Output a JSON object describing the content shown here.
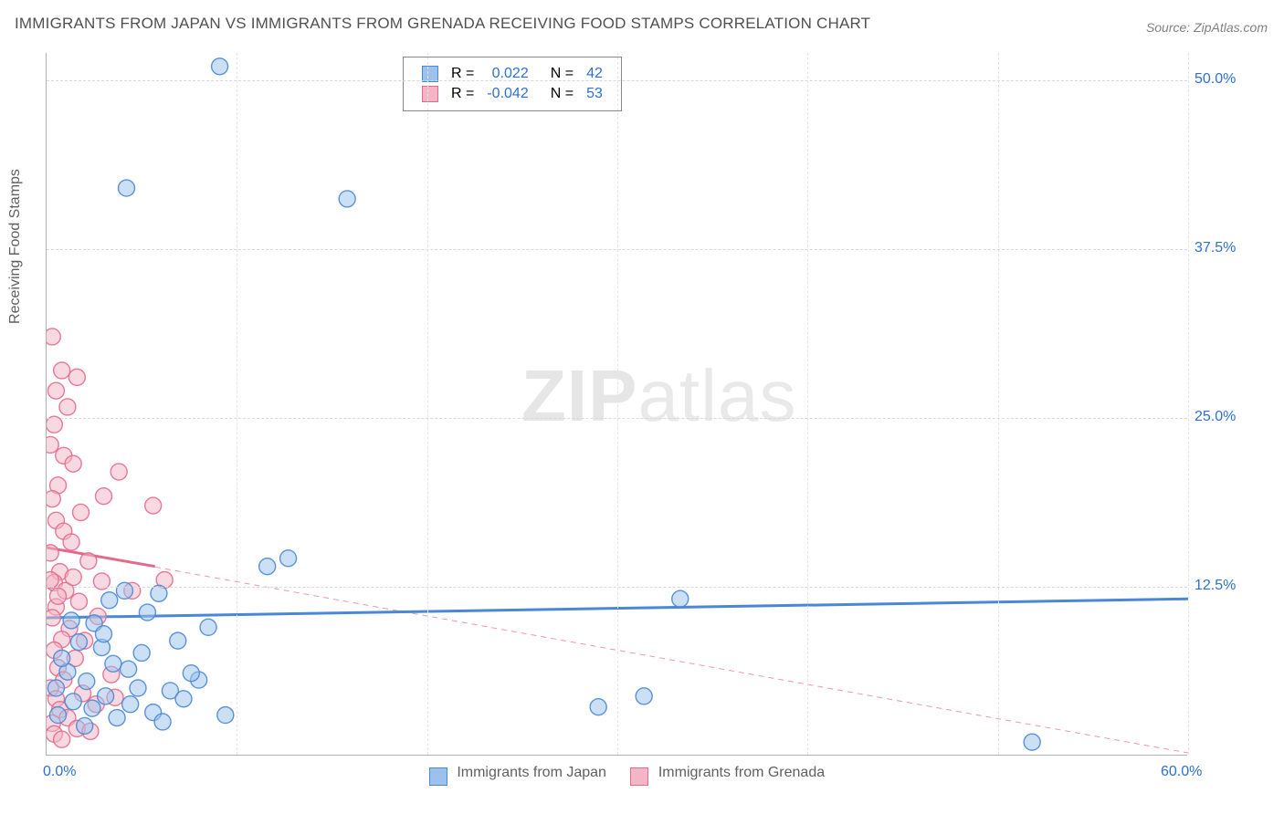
{
  "title": "IMMIGRANTS FROM JAPAN VS IMMIGRANTS FROM GRENADA RECEIVING FOOD STAMPS CORRELATION CHART",
  "source": "Source: ZipAtlas.com",
  "ylabel": "Receiving Food Stamps",
  "watermark": {
    "bold": "ZIP",
    "light": "atlas"
  },
  "chart": {
    "type": "scatter",
    "xlim": [
      0,
      60
    ],
    "ylim": [
      0,
      52
    ],
    "xticks": [
      0,
      10,
      20,
      30,
      40,
      50,
      60
    ],
    "xtick_labels": [
      "0.0%",
      "",
      "",
      "",
      "",
      "",
      "60.0%"
    ],
    "yticks": [
      12.5,
      25.0,
      37.5,
      50.0
    ],
    "ytick_labels": [
      "12.5%",
      "25.0%",
      "37.5%",
      "50.0%"
    ],
    "xtick_color": "#2f6fd0",
    "ytick_color": "#2f6fd0",
    "grid_color": "#d8d8d8",
    "background": "#ffffff",
    "marker_radius": 9,
    "marker_opacity": 0.52,
    "marker_stroke_opacity": 0.9,
    "series": [
      {
        "name": "Immigrants from Japan",
        "color_fill": "#9bc1ec",
        "color_stroke": "#4a87d6",
        "r_value": "0.022",
        "n_value": "42",
        "regression": {
          "x1": 0,
          "y1": 10.2,
          "x2": 60,
          "y2": 11.6,
          "width": 3,
          "dash": "0"
        },
        "points": [
          [
            9.1,
            51.0
          ],
          [
            4.2,
            42.0
          ],
          [
            15.8,
            41.2
          ],
          [
            12.7,
            14.6
          ],
          [
            11.6,
            14.0
          ],
          [
            33.3,
            11.6
          ],
          [
            51.8,
            1.0
          ],
          [
            29.0,
            3.6
          ],
          [
            31.4,
            4.4
          ],
          [
            4.1,
            12.2
          ],
          [
            5.9,
            12.0
          ],
          [
            2.5,
            9.8
          ],
          [
            1.7,
            8.4
          ],
          [
            2.9,
            8.0
          ],
          [
            3.5,
            6.8
          ],
          [
            1.1,
            6.2
          ],
          [
            5.3,
            10.6
          ],
          [
            0.8,
            7.2
          ],
          [
            2.1,
            5.5
          ],
          [
            4.8,
            5.0
          ],
          [
            3.1,
            4.4
          ],
          [
            6.5,
            4.8
          ],
          [
            1.4,
            4.0
          ],
          [
            2.4,
            3.5
          ],
          [
            4.4,
            3.8
          ],
          [
            5.6,
            3.2
          ],
          [
            7.2,
            4.2
          ],
          [
            0.6,
            3.0
          ],
          [
            3.7,
            2.8
          ],
          [
            6.1,
            2.5
          ],
          [
            2.0,
            2.2
          ],
          [
            4.3,
            6.4
          ],
          [
            3.0,
            9.0
          ],
          [
            6.9,
            8.5
          ],
          [
            8.5,
            9.5
          ],
          [
            8.0,
            5.6
          ],
          [
            3.3,
            11.5
          ],
          [
            1.3,
            10.0
          ],
          [
            0.5,
            5.0
          ],
          [
            5.0,
            7.6
          ],
          [
            7.6,
            6.1
          ],
          [
            9.4,
            3.0
          ]
        ]
      },
      {
        "name": "Immigrants from Grenada",
        "color_fill": "#f4b6c6",
        "color_stroke": "#e46a8c",
        "r_value": "-0.042",
        "n_value": "53",
        "regression_solid": {
          "x1": 0,
          "y1": 15.4,
          "x2": 5.7,
          "y2": 14.0,
          "width": 3
        },
        "regression_dashed": {
          "x1": 0,
          "y1": 15.4,
          "x2": 60,
          "y2": 0.2,
          "width": 1,
          "dash": "6 5"
        },
        "points": [
          [
            0.3,
            31.0
          ],
          [
            0.8,
            28.5
          ],
          [
            1.6,
            28.0
          ],
          [
            0.5,
            27.0
          ],
          [
            1.1,
            25.8
          ],
          [
            0.4,
            24.5
          ],
          [
            0.2,
            23.0
          ],
          [
            0.9,
            22.2
          ],
          [
            1.4,
            21.6
          ],
          [
            3.8,
            21.0
          ],
          [
            0.6,
            20.0
          ],
          [
            0.3,
            19.0
          ],
          [
            5.6,
            18.5
          ],
          [
            1.8,
            18.0
          ],
          [
            3.0,
            19.2
          ],
          [
            0.5,
            17.4
          ],
          [
            0.9,
            16.6
          ],
          [
            1.3,
            15.8
          ],
          [
            0.2,
            15.0
          ],
          [
            2.2,
            14.4
          ],
          [
            0.7,
            13.6
          ],
          [
            0.4,
            12.8
          ],
          [
            1.0,
            12.2
          ],
          [
            1.7,
            11.4
          ],
          [
            2.9,
            12.9
          ],
          [
            4.5,
            12.2
          ],
          [
            6.2,
            13.0
          ],
          [
            0.5,
            11.0
          ],
          [
            0.3,
            10.2
          ],
          [
            1.2,
            9.4
          ],
          [
            0.8,
            8.6
          ],
          [
            2.0,
            8.5
          ],
          [
            0.4,
            7.8
          ],
          [
            1.5,
            7.2
          ],
          [
            0.6,
            6.5
          ],
          [
            3.4,
            6.0
          ],
          [
            0.9,
            5.6
          ],
          [
            0.2,
            5.0
          ],
          [
            1.9,
            4.6
          ],
          [
            0.5,
            4.2
          ],
          [
            2.6,
            3.8
          ],
          [
            0.7,
            3.4
          ],
          [
            1.1,
            2.8
          ],
          [
            0.3,
            2.4
          ],
          [
            1.6,
            2.0
          ],
          [
            0.4,
            1.6
          ],
          [
            0.8,
            1.2
          ],
          [
            2.3,
            1.8
          ],
          [
            0.6,
            11.8
          ],
          [
            1.4,
            13.2
          ],
          [
            2.7,
            10.3
          ],
          [
            0.2,
            13.0
          ],
          [
            3.6,
            4.3
          ]
        ]
      }
    ]
  },
  "legend_top": {
    "r_label": "R =",
    "n_label": "N =",
    "value_color": "#2f6fd0"
  },
  "legend_bottom": {
    "items": [
      "Immigrants from Japan",
      "Immigrants from Grenada"
    ]
  }
}
